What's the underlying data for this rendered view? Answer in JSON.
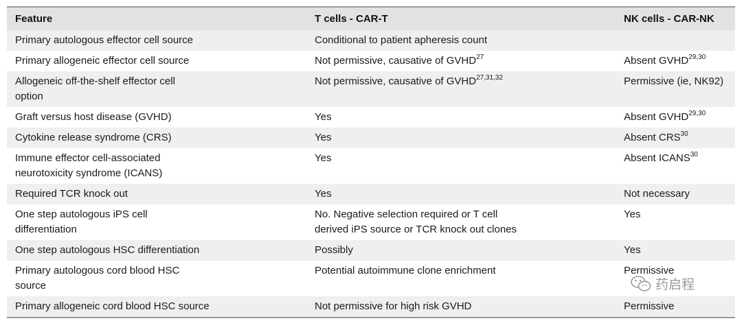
{
  "table": {
    "headers": [
      "Feature",
      "T cells - CAR-T",
      "NK cells - CAR-NK"
    ],
    "rows": [
      {
        "feature": [
          "Primary autologous effector cell source"
        ],
        "cart": [
          "Conditional to patient apheresis count"
        ],
        "carnk": [],
        "cart_sup": "",
        "carnk_sup": ""
      },
      {
        "feature": [
          "Primary allogeneic effector cell source"
        ],
        "cart": [
          "Not permissive, causative of GVHD"
        ],
        "cart_sup": "27",
        "carnk": [
          "Absent GVHD"
        ],
        "carnk_sup": "29,30"
      },
      {
        "feature": [
          "Allogeneic off-the-shelf effector cell",
          "option"
        ],
        "cart": [
          "Not permissive, causative of GVHD"
        ],
        "cart_sup": "27,31,32",
        "carnk": [
          "Permissive (ie, NK92)"
        ],
        "carnk_sup": ""
      },
      {
        "feature": [
          "Graft versus host disease (GVHD)"
        ],
        "cart": [
          "Yes"
        ],
        "cart_sup": "",
        "carnk": [
          "Absent GVHD"
        ],
        "carnk_sup": "29,30"
      },
      {
        "feature": [
          "Cytokine release syndrome (CRS)"
        ],
        "cart": [
          "Yes"
        ],
        "cart_sup": "",
        "carnk": [
          "Absent CRS"
        ],
        "carnk_sup": "30"
      },
      {
        "feature": [
          "Immune effector cell-associated",
          "neurotoxicity syndrome (ICANS)"
        ],
        "cart": [
          "Yes"
        ],
        "cart_sup": "",
        "carnk": [
          "Absent ICANS"
        ],
        "carnk_sup": "30"
      },
      {
        "feature": [
          "Required TCR knock out"
        ],
        "cart": [
          "Yes"
        ],
        "cart_sup": "",
        "carnk": [
          "Not necessary"
        ],
        "carnk_sup": ""
      },
      {
        "feature": [
          "One step autologous iPS cell",
          "differentiation"
        ],
        "cart": [
          "No. Negative selection required or T cell",
          "derived iPS source or TCR knock out clones"
        ],
        "cart_sup": "",
        "carnk": [
          "Yes"
        ],
        "carnk_sup": ""
      },
      {
        "feature": [
          "One step autologous HSC differentiation"
        ],
        "cart": [
          "Possibly"
        ],
        "cart_sup": "",
        "carnk": [
          "Yes"
        ],
        "carnk_sup": ""
      },
      {
        "feature": [
          "Primary autologous cord blood HSC",
          "source"
        ],
        "cart": [
          "Potential autoimmune clone enrichment"
        ],
        "cart_sup": "",
        "carnk": [
          "Permissive"
        ],
        "carnk_sup": ""
      },
      {
        "feature": [
          "Primary allogeneic cord blood HSC source"
        ],
        "cart": [
          "Not permissive for high risk GVHD"
        ],
        "cart_sup": "",
        "carnk": [
          "Permissive"
        ],
        "carnk_sup": ""
      }
    ]
  },
  "watermark": {
    "icon": "wechat-icon",
    "text": "药启程"
  }
}
